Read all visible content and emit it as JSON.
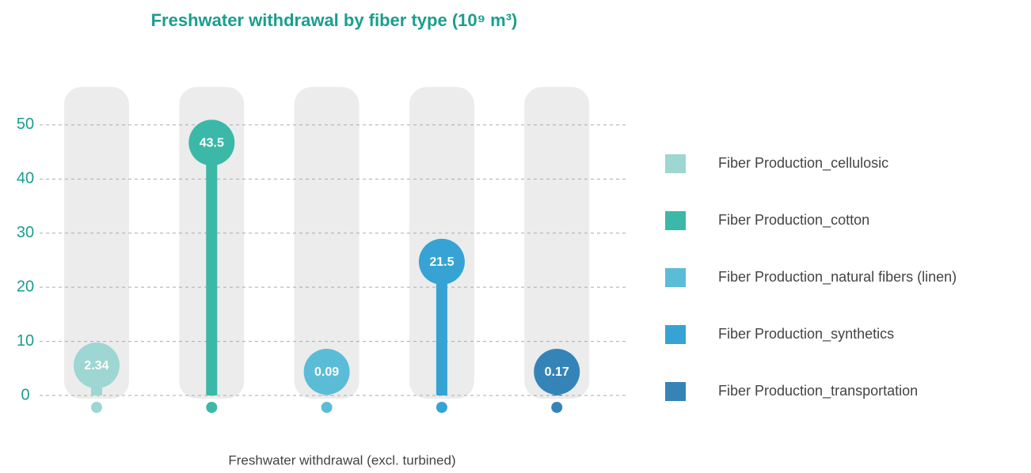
{
  "chart_data": {
    "type": "lollipop",
    "title": "Freshwater withdrawal by fiber type (10⁹ m³)",
    "categories": [
      "Freshwater withdrawal (excl. turbined)"
    ],
    "series": [
      {
        "name": "Fiber Production_cellulosic",
        "color": "#9dd6d2",
        "values": [
          2.34
        ]
      },
      {
        "name": "Fiber Production_cotton",
        "color": "#3bb8a8",
        "values": [
          43.5
        ]
      },
      {
        "name": "Fiber Production_natural fibers (linen)",
        "color": "#5bbcd8",
        "values": [
          0.09
        ]
      },
      {
        "name": "Fiber Production_synthetics",
        "color": "#36a3d4",
        "values": [
          21.5
        ]
      },
      {
        "name": "Fiber Production_transportation",
        "color": "#3584b8",
        "values": [
          0.17
        ]
      }
    ],
    "ylim": [
      0,
      57
    ],
    "yticks": [
      0,
      10,
      20,
      30,
      40,
      50
    ],
    "grid": true,
    "legend": "right"
  }
}
